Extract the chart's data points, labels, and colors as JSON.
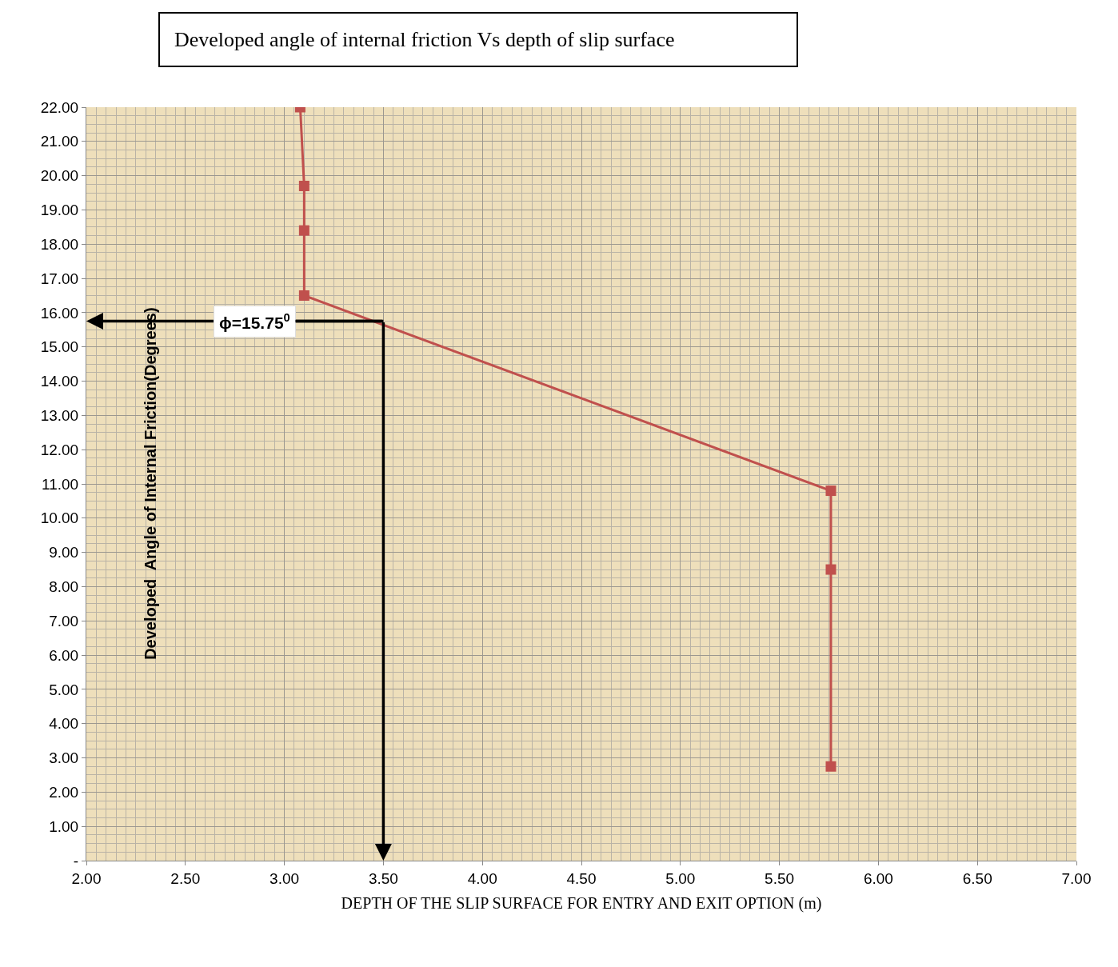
{
  "chart_data": {
    "type": "line",
    "title": "Developed angle of internal friction Vs depth of slip surface",
    "xlabel": "DEPTH OF THE SLIP SURFACE FOR ENTRY AND EXIT OPTION (m)",
    "ylabel": "Developed  Angle of Internal Friction(Degrees)",
    "x": [
      3.08,
      3.1,
      3.1,
      3.1,
      5.76,
      5.76,
      5.76
    ],
    "series": [
      {
        "color": "#c0504d",
        "values": [
          22.0,
          19.7,
          18.4,
          16.5,
          10.8,
          8.5,
          2.75
        ]
      }
    ],
    "marker": "square",
    "xlim": [
      2.0,
      7.0
    ],
    "xticks": [
      {
        "value": 2,
        "label": "2.00"
      },
      {
        "value": 2.5,
        "label": "2.50"
      },
      {
        "value": 3,
        "label": "3.00"
      },
      {
        "value": 3.5,
        "label": "3.50"
      },
      {
        "value": 4,
        "label": "4.00"
      },
      {
        "value": 4.5,
        "label": "4.50"
      },
      {
        "value": 5,
        "label": "5.00"
      },
      {
        "value": 5.5,
        "label": "5.50"
      },
      {
        "value": 6,
        "label": "6.00"
      },
      {
        "value": 6.5,
        "label": "6.50"
      },
      {
        "value": 7,
        "label": "7.00"
      }
    ],
    "ylim": [
      0,
      22
    ],
    "yticks": [
      {
        "value": 0,
        "label": "-"
      },
      {
        "value": 1,
        "label": "1.00"
      },
      {
        "value": 2,
        "label": "2.00"
      },
      {
        "value": 3,
        "label": "3.00"
      },
      {
        "value": 4,
        "label": "4.00"
      },
      {
        "value": 5,
        "label": "5.00"
      },
      {
        "value": 6,
        "label": "6.00"
      },
      {
        "value": 7,
        "label": "7.00"
      },
      {
        "value": 8,
        "label": "8.00"
      },
      {
        "value": 9,
        "label": "9.00"
      },
      {
        "value": 10,
        "label": "10.00"
      },
      {
        "value": 11,
        "label": "11.00"
      },
      {
        "value": 12,
        "label": "12.00"
      },
      {
        "value": 13,
        "label": "13.00"
      },
      {
        "value": 14,
        "label": "14.00"
      },
      {
        "value": 15,
        "label": "15.00"
      },
      {
        "value": 16,
        "label": "16.00"
      },
      {
        "value": 17,
        "label": "17.00"
      },
      {
        "value": 18,
        "label": "18.00"
      },
      {
        "value": 19,
        "label": "19.00"
      },
      {
        "value": 20,
        "label": "20.00"
      },
      {
        "value": 21,
        "label": "21.00"
      },
      {
        "value": 22,
        "label": "22.00"
      }
    ],
    "grid": true,
    "annotations": [
      {
        "text": "ϕ=15.75$^{0}$",
        "x": 3.5,
        "y": 15.75
      }
    ]
  }
}
